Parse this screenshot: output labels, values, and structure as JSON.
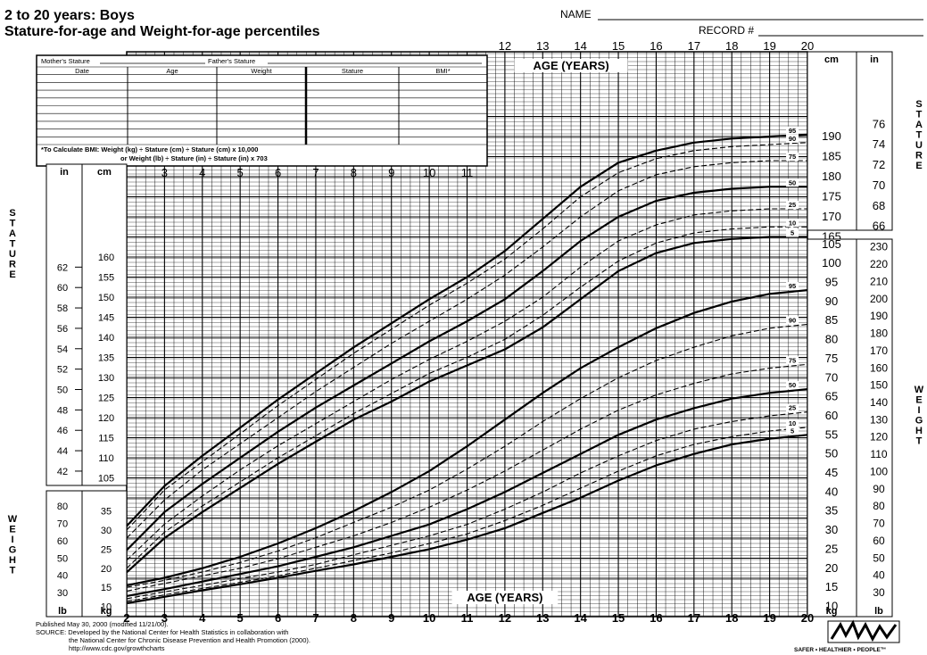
{
  "header": {
    "title_line1": "2 to 20 years: Boys",
    "title_line2": "Stature-for-age and Weight-for-age percentiles",
    "name_label": "NAME",
    "record_label": "RECORD #"
  },
  "record_table": {
    "mothers_stature": "Mother's Stature",
    "fathers_stature": "Father's Stature",
    "columns": [
      "Date",
      "Age",
      "Weight",
      "Stature",
      "BMI*"
    ],
    "bmi_note_line1": "*To Calculate BMI: Weight (kg) ÷ Stature (cm) ÷ Stature (cm) x 10,000",
    "bmi_note_line2": "or Weight (lb) ÷ Stature (in) ÷ Stature (in) x 703"
  },
  "side_labels": {
    "stature": "STATURE",
    "weight": "WEIGHT"
  },
  "footer": {
    "line1": "Published May 30, 2000 (modified 11/21/00).",
    "line2": "SOURCE: Developed by the National Center for Health Statistics in collaboration with",
    "line3": "the National Center for Chronic Disease Prevention and Health Promotion (2000).",
    "line4": "http://www.cdc.gov/growthcharts",
    "logo_text": "SAFER • HEALTHIER • PEOPLE™"
  },
  "chart_data": [
    {
      "type": "line",
      "title": "Stature-for-age percentiles",
      "xlabel": "AGE (YEARS)",
      "ylabel": "STATURE",
      "x": [
        2,
        3,
        4,
        5,
        6,
        7,
        8,
        9,
        10,
        11,
        12,
        13,
        14,
        15,
        16,
        17,
        18,
        19,
        20
      ],
      "xlim": [
        2,
        20
      ],
      "ylim_cm": [
        77,
        197
      ],
      "y_unit": "cm",
      "secondary_unit": "in",
      "grid": true,
      "series": [
        {
          "name": "95",
          "values": [
            93,
            103,
            110.5,
            117.5,
            124.5,
            131,
            137.5,
            143.5,
            149.5,
            155,
            161.5,
            169.5,
            177.5,
            183.5,
            186.5,
            188.5,
            189.5,
            190,
            190.5
          ]
        },
        {
          "name": "90",
          "values": [
            92,
            102,
            109,
            116,
            123,
            129.5,
            136,
            142,
            148,
            153.5,
            159.5,
            167,
            175,
            181,
            184.5,
            186.5,
            187.5,
            188,
            188.5
          ]
        },
        {
          "name": "75",
          "values": [
            90,
            99.5,
            107,
            113.5,
            120,
            126.5,
            132.5,
            138.5,
            144,
            149.5,
            155.5,
            162.5,
            170,
            176.5,
            180.5,
            182.5,
            183.5,
            184,
            184
          ]
        },
        {
          "name": "50",
          "values": [
            87,
            96.5,
            103.5,
            110,
            116.5,
            122.5,
            128,
            133.5,
            139,
            144,
            149.5,
            156.5,
            164,
            170,
            174,
            176,
            177,
            177.5,
            177.5
          ]
        },
        {
          "name": "25",
          "values": [
            84.5,
            93.5,
            100.5,
            107,
            113,
            118.5,
            124,
            129.5,
            134.5,
            139,
            144,
            150,
            157.5,
            164,
            168,
            170.5,
            171.5,
            172,
            172
          ]
        },
        {
          "name": "10",
          "values": [
            82.5,
            91.5,
            98,
            104,
            110,
            115.5,
            121,
            126,
            131,
            135,
            139.5,
            145.5,
            152.5,
            159,
            163.5,
            166,
            167,
            167.5,
            167.5
          ]
        },
        {
          "name": "5",
          "values": [
            81.5,
            90,
            96.5,
            102.5,
            108.5,
            114,
            119.5,
            124,
            129,
            133,
            137,
            142.5,
            149.5,
            156.5,
            161,
            163.5,
            164.5,
            165,
            165
          ]
        }
      ]
    },
    {
      "type": "line",
      "title": "Weight-for-age percentiles",
      "xlabel": "AGE (YEARS)",
      "ylabel": "WEIGHT",
      "x": [
        2,
        3,
        4,
        5,
        6,
        7,
        8,
        9,
        10,
        11,
        12,
        13,
        14,
        15,
        16,
        17,
        18,
        19,
        20
      ],
      "xlim": [
        2,
        20
      ],
      "ylim_kg": [
        8,
        106
      ],
      "y_unit": "kg",
      "secondary_unit": "lb",
      "grid": true,
      "series": [
        {
          "name": "95",
          "values": [
            15.5,
            17.5,
            20,
            23,
            26.5,
            30.5,
            35,
            40,
            45.5,
            52,
            59,
            66,
            72.5,
            78,
            83,
            87,
            90,
            92,
            93
          ]
        },
        {
          "name": "90",
          "values": [
            15,
            16.8,
            19,
            21.5,
            24.5,
            28,
            32,
            36,
            40.5,
            46,
            52,
            58.5,
            64.5,
            70,
            74.5,
            78,
            81,
            83,
            84
          ]
        },
        {
          "name": "75",
          "values": [
            14,
            16,
            18,
            20,
            22.5,
            25.5,
            28.5,
            32,
            36,
            40.5,
            45.5,
            51,
            56.5,
            61.5,
            65.5,
            68.5,
            71,
            72.5,
            73.5
          ]
        },
        {
          "name": "50",
          "values": [
            12.7,
            14.5,
            16.5,
            18.5,
            20.5,
            23,
            25.5,
            28.5,
            31.5,
            35.5,
            40,
            45,
            50,
            55,
            59,
            62,
            64.5,
            66,
            67
          ]
        },
        {
          "name": "25",
          "values": [
            12,
            13.8,
            15.5,
            17.3,
            19,
            21,
            23.5,
            26,
            28.5,
            31.5,
            35.5,
            40,
            45,
            49.5,
            53.5,
            56.5,
            58.5,
            60,
            61
          ]
        },
        {
          "name": "10",
          "values": [
            11.3,
            13,
            14.7,
            16.3,
            18,
            20,
            22,
            24,
            26.5,
            29,
            32.5,
            36.5,
            41,
            45.5,
            49.5,
            52.5,
            54.5,
            56,
            57
          ]
        },
        {
          "name": "5",
          "values": [
            10.8,
            12.5,
            14.2,
            15.8,
            17.5,
            19.3,
            21,
            23,
            25,
            27.5,
            30.5,
            34.5,
            38.5,
            43,
            47,
            50,
            52.5,
            54,
            55
          ]
        }
      ]
    }
  ]
}
